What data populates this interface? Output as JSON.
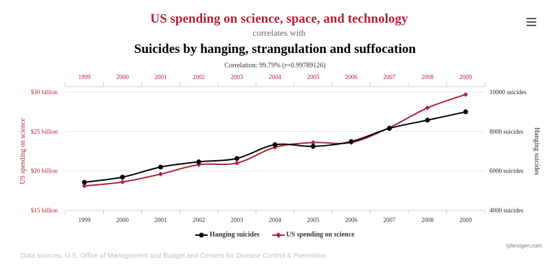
{
  "header": {
    "title": "US spending on science, space, and technology",
    "subtitle": "correlates with",
    "title2": "Suicides by hanging, strangulation and suffocation",
    "correlation": "Correlation: 99.79% (r=0.99789126)"
  },
  "menu_icon": "hamburger-menu-icon",
  "colors": {
    "science": "#b22234",
    "suicides": "#000000",
    "grid": "#e6e6e6",
    "axis": "#c0d0e0"
  },
  "chart_data": {
    "type": "line",
    "x": [
      1999,
      2000,
      2001,
      2002,
      2003,
      2004,
      2005,
      2006,
      2007,
      2008,
      2009
    ],
    "x_tick_labels": [
      "1999",
      "2000",
      "2001",
      "2002",
      "2003",
      "2004",
      "2005",
      "2006",
      "2007",
      "2008",
      "2009"
    ],
    "series": [
      {
        "name": "Hanging suicides",
        "axis": "right",
        "color": "#000000",
        "values": [
          5427,
          5688,
          6198,
          6462,
          6635,
          7336,
          7248,
          7491,
          8161,
          8578,
          9000
        ]
      },
      {
        "name": "US spending on science",
        "axis": "left",
        "color": "#b22234",
        "values": [
          18.1,
          18.6,
          19.6,
          20.8,
          21.0,
          23.0,
          23.6,
          23.6,
          25.5,
          28.0,
          29.7
        ]
      }
    ],
    "y_left": {
      "label": "US spending on science",
      "range": [
        15,
        30
      ],
      "ticks": [
        15,
        20,
        25,
        30
      ],
      "tick_labels": [
        "$15 billion",
        "$20 billion",
        "$25 billion",
        "$30 billion"
      ]
    },
    "y_right": {
      "label": "Hanging suicides",
      "range": [
        4000,
        10000
      ],
      "ticks": [
        4000,
        6000,
        8000,
        10000
      ],
      "tick_labels": [
        "4000 suicides",
        "6000 suicides",
        "8000 suicides",
        "10000 suicides"
      ]
    },
    "grid": true,
    "legend": "bottom-center"
  },
  "footer": {
    "credit": "tylervigen.com",
    "sources": "Data sources: U.S. Office of Management and Budget and Centers for Disease Control & Prevention"
  }
}
